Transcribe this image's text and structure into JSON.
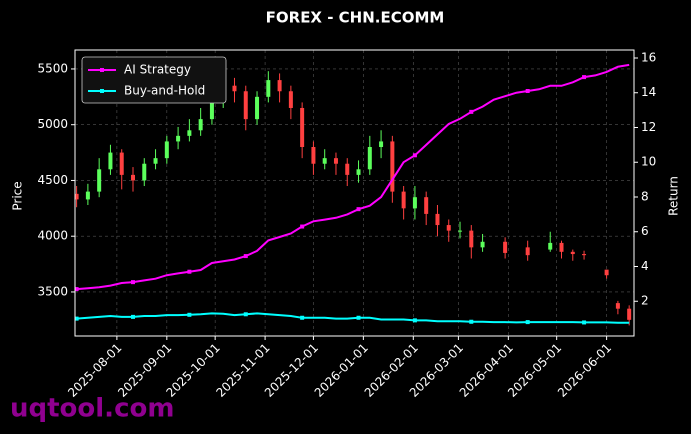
{
  "chart_data": {
    "type": "candlestick",
    "title": "FOREX - CHN.ECOMM",
    "ylabel": "Price",
    "y2label": "Return",
    "watermark": "uqtool.com",
    "x": [
      "2025-07-07",
      "2025-07-14",
      "2025-07-21",
      "2025-07-28",
      "2025-08-04",
      "2025-08-11",
      "2025-08-18",
      "2025-08-25",
      "2025-09-01",
      "2025-09-08",
      "2025-09-15",
      "2025-09-22",
      "2025-09-29",
      "2025-10-06",
      "2025-10-13",
      "2025-10-20",
      "2025-10-27",
      "2025-11-03",
      "2025-11-10",
      "2025-11-17",
      "2025-11-24",
      "2025-12-01",
      "2025-12-08",
      "2025-12-15",
      "2025-12-22",
      "2025-12-29",
      "2026-01-05",
      "2026-01-12",
      "2026-01-19",
      "2026-01-26",
      "2026-02-02",
      "2026-02-09",
      "2026-02-16",
      "2026-02-23",
      "2026-03-02",
      "2026-03-09",
      "2026-03-16",
      "2026-03-23",
      "2026-03-30",
      "2026-04-06",
      "2026-04-13",
      "2026-04-20",
      "2026-04-27",
      "2026-05-04",
      "2026-05-11",
      "2026-05-18",
      "2026-05-25",
      "2026-06-01",
      "2026-06-08",
      "2026-06-15"
    ],
    "open": [
      4380,
      4330,
      4400,
      4600,
      4750,
      4550,
      4500,
      4650,
      4700,
      4850,
      4900,
      4950,
      5050,
      5200,
      5350,
      5300,
      5050,
      5250,
      5400,
      5300,
      5150,
      4800,
      4650,
      4700,
      4650,
      4550,
      4600,
      4800,
      4850,
      4400,
      4250,
      4350,
      4200,
      4100,
      4050,
      4050,
      3900,
      null,
      3950,
      null,
      3900,
      null,
      3880,
      3940,
      3860,
      3840,
      null,
      3700,
      3400,
      3350
    ],
    "high": [
      4450,
      4470,
      4700,
      4820,
      4780,
      4620,
      4700,
      4780,
      4900,
      4980,
      5050,
      5150,
      5300,
      5500,
      5420,
      5350,
      5300,
      5480,
      5460,
      5350,
      5200,
      4850,
      4780,
      4750,
      4700,
      4680,
      4900,
      4950,
      4900,
      4450,
      4450,
      4400,
      4280,
      4150,
      4130,
      4100,
      4020,
      null,
      3990,
      null,
      3960,
      null,
      4040,
      3960,
      3880,
      3870,
      null,
      3700,
      3420,
      3380
    ],
    "low": [
      4260,
      4280,
      4350,
      4550,
      4420,
      4400,
      4450,
      4600,
      4650,
      4780,
      4850,
      4900,
      5000,
      5150,
      5200,
      4950,
      5000,
      5200,
      5200,
      5050,
      4700,
      4550,
      4600,
      4550,
      4450,
      4480,
      4550,
      4700,
      4300,
      4150,
      4150,
      4100,
      4000,
      3950,
      3980,
      3800,
      3860,
      null,
      3800,
      null,
      3780,
      null,
      3860,
      3800,
      3780,
      3790,
      null,
      3620,
      3300,
      3200
    ],
    "close": [
      4330,
      4400,
      4600,
      4750,
      4550,
      4500,
      4650,
      4700,
      4850,
      4900,
      4950,
      5050,
      5200,
      5350,
      5300,
      5050,
      5250,
      5400,
      5300,
      5150,
      4800,
      4650,
      4700,
      4650,
      4550,
      4600,
      4800,
      4850,
      4400,
      4250,
      4350,
      4200,
      4100,
      4050,
      4050,
      3900,
      3950,
      null,
      3850,
      null,
      3830,
      null,
      3940,
      3860,
      3840,
      3830,
      null,
      3650,
      3350,
      3250
    ],
    "up_color": "#5cff5c",
    "down_color": "#ff4040",
    "series": [
      {
        "name": "AI Strategy",
        "color": "#ff00ff",
        "axis": "y2",
        "values": [
          2.7,
          2.75,
          2.8,
          2.9,
          3.05,
          3.1,
          3.2,
          3.3,
          3.5,
          3.6,
          3.7,
          3.8,
          4.2,
          4.3,
          4.4,
          4.6,
          4.9,
          5.5,
          5.7,
          5.9,
          6.3,
          6.6,
          6.7,
          6.8,
          7.0,
          7.3,
          7.5,
          8.0,
          9.0,
          10.0,
          10.4,
          11.0,
          11.6,
          12.2,
          12.5,
          12.9,
          13.2,
          13.6,
          13.8,
          14.0,
          14.1,
          14.2,
          14.4,
          14.4,
          14.6,
          14.9,
          15.0,
          15.2,
          15.5,
          15.6
        ]
      },
      {
        "name": "Buy-and-Hold",
        "color": "#00ffff",
        "axis": "y2",
        "values": [
          1.0,
          1.05,
          1.1,
          1.15,
          1.1,
          1.1,
          1.15,
          1.15,
          1.2,
          1.2,
          1.22,
          1.25,
          1.3,
          1.28,
          1.2,
          1.25,
          1.3,
          1.25,
          1.2,
          1.15,
          1.05,
          1.05,
          1.05,
          1.0,
          1.0,
          1.05,
          1.05,
          0.95,
          0.95,
          0.95,
          0.9,
          0.9,
          0.85,
          0.85,
          0.85,
          0.82,
          0.82,
          0.8,
          0.8,
          0.78,
          0.8,
          0.8,
          0.8,
          0.8,
          0.8,
          0.78,
          0.78,
          0.78,
          0.76,
          0.76
        ]
      }
    ],
    "xlim": [
      "2025-07-06",
      "2026-06-18"
    ],
    "xticks": [
      "2025-08-01",
      "2025-09-01",
      "2025-10-01",
      "2025-11-01",
      "2025-12-01",
      "2026-01-01",
      "2026-02-01",
      "2026-03-01",
      "2026-04-01",
      "2026-05-01",
      "2026-06-01"
    ],
    "ylim": [
      3105,
      5670
    ],
    "yticks": [
      3500,
      4000,
      4500,
      5000,
      5500
    ],
    "y2lim": [
      0,
      16.46
    ],
    "y2ticks": [
      2,
      4,
      6,
      8,
      10,
      12,
      14,
      16
    ],
    "grid": true,
    "legend": "upper left"
  }
}
